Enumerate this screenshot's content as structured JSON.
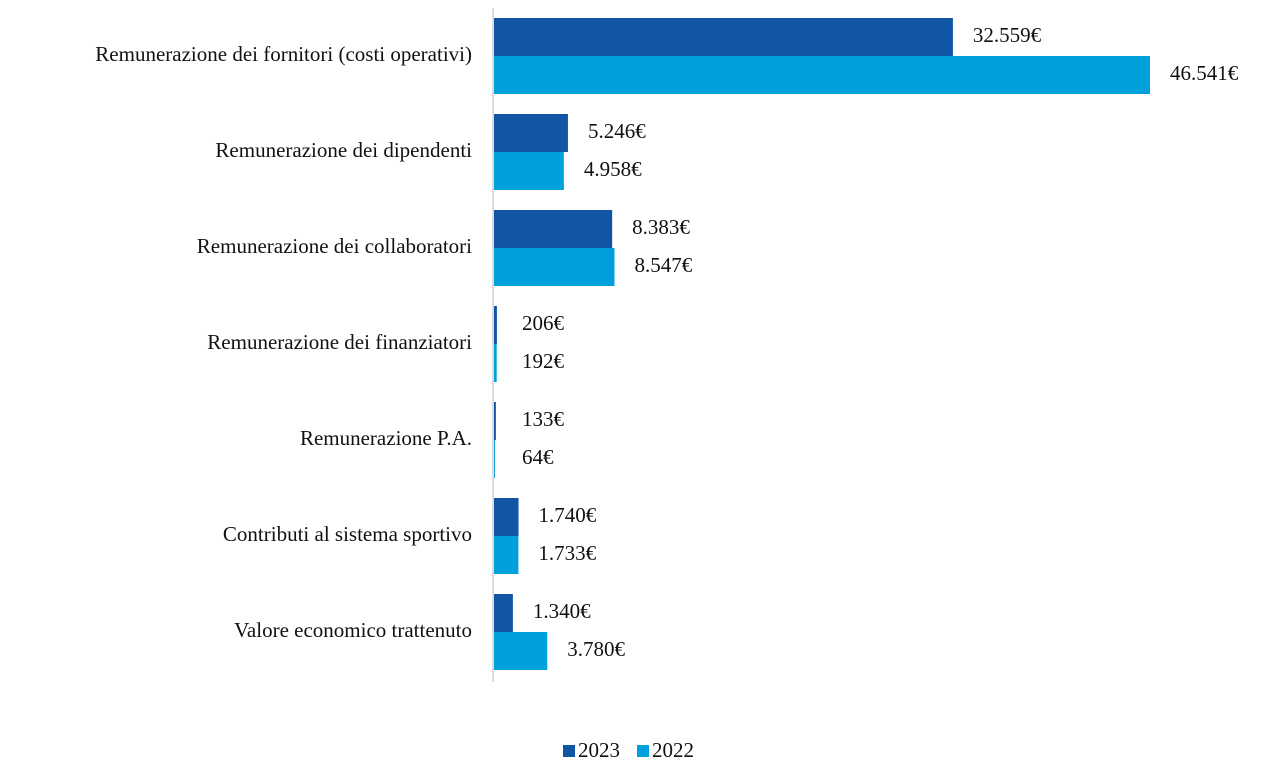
{
  "chart_data": {
    "type": "bar",
    "orientation": "horizontal",
    "categories": [
      "Remunerazione dei fornitori (costi operativi)",
      "Remunerazione dei dipendenti",
      "Remunerazione dei collaboratori",
      "Remunerazione dei finanziatori",
      "Remunerazione P.A.",
      "Contributi al sistema sportivo",
      "Valore economico trattenuto"
    ],
    "series": [
      {
        "name": "2023",
        "color": "#1155a5",
        "values": [
          32559,
          5246,
          8383,
          206,
          133,
          1740,
          1340
        ],
        "value_labels": [
          "32.559€",
          "5.246€",
          "8.383€",
          "206€",
          "133€",
          "1.740€",
          "1.340€"
        ]
      },
      {
        "name": "2022",
        "color": "#00a0dc",
        "values": [
          46541,
          4958,
          8547,
          192,
          64,
          1733,
          3780
        ],
        "value_labels": [
          "46.541€",
          "4.958€",
          "8.547€",
          "192€",
          "64€",
          "1.733€",
          "3.780€"
        ]
      }
    ],
    "legend": "bottom"
  }
}
